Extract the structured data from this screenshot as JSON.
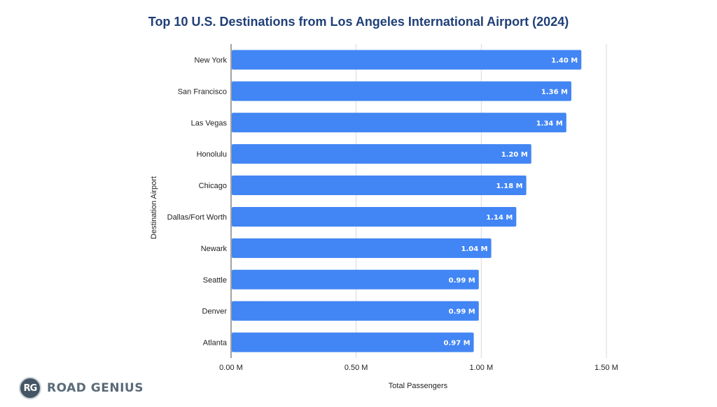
{
  "chart_data": {
    "type": "bar",
    "orientation": "horizontal",
    "title": "Top 10 U.S. Destinations from Los Angeles International Airport (2024)",
    "xlabel": "Total Passengers",
    "ylabel": "Destination Airport",
    "categories": [
      "New York",
      "San Francisco",
      "Las Vegas",
      "Honolulu",
      "Chicago",
      "Dallas/Fort Worth",
      "Newark",
      "Seattle",
      "Denver",
      "Atlanta"
    ],
    "values": [
      1.4,
      1.36,
      1.34,
      1.2,
      1.18,
      1.14,
      1.04,
      0.99,
      0.99,
      0.97
    ],
    "value_labels": [
      "1.40 M",
      "1.36 M",
      "1.34 M",
      "1.20 M",
      "1.18 M",
      "1.14 M",
      "1.04 M",
      "0.99 M",
      "0.99 M",
      "0.97 M"
    ],
    "x_ticks": [
      0,
      0.5,
      1.0,
      1.5
    ],
    "x_tick_labels": [
      "0.00 M",
      "0.50 M",
      "1.00 M",
      "1.50 M"
    ],
    "xlim": [
      0,
      1.5
    ],
    "grid": true,
    "legend": "none",
    "bar_color": "#4285f4",
    "gridline_color": "#d9d9d9",
    "title_color": "#1f3f77"
  },
  "branding": {
    "logo_initials": "RG",
    "logo_text": "ROAD GENIUS"
  }
}
